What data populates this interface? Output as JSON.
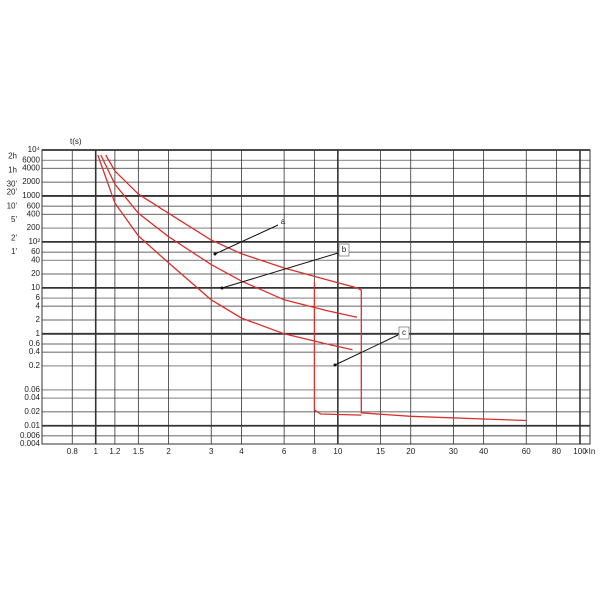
{
  "chart_data": {
    "type": "line",
    "x_label": "×In",
    "y_label": "t(s)",
    "log_x": true,
    "log_y": true,
    "grid": true,
    "xlim": [
      0.6,
      110
    ],
    "ylim": [
      0.004,
      10000
    ],
    "xticks": [
      0.8,
      1,
      1.2,
      1.5,
      2,
      3,
      4,
      6,
      8,
      10,
      15,
      20,
      30,
      40,
      60,
      80,
      100
    ],
    "yticks": [
      0.004,
      0.006,
      0.01,
      0.02,
      0.04,
      0.06,
      0.2,
      0.4,
      0.6,
      1,
      2,
      4,
      6,
      10,
      20,
      40,
      60,
      {
        "value": 100,
        "label": "10²"
      },
      200,
      400,
      600,
      1000,
      2000,
      4000,
      6000,
      {
        "value": 10000,
        "label": "10⁴"
      }
    ],
    "time_ticks": [
      {
        "value": 7200,
        "label": "2h"
      },
      {
        "value": 3600,
        "label": "1h"
      },
      {
        "value": 1800,
        "label": "30'"
      },
      {
        "value": 1200,
        "label": "20'"
      },
      {
        "value": 600,
        "label": "10'"
      },
      {
        "value": 300,
        "label": "5'"
      },
      {
        "value": 120,
        "label": "2'"
      },
      {
        "value": 60,
        "label": "1'"
      }
    ],
    "series": [
      {
        "color": "#d9302c",
        "x": [
          1.1,
          1.2,
          1.5,
          2,
          3,
          4,
          6,
          9,
          12,
          12.5,
          12.5,
          20,
          40,
          60
        ],
        "values": [
          7800,
          3500,
          1100,
          420,
          110,
          55,
          27,
          15,
          10,
          9,
          0.019,
          0.016,
          0.014,
          0.013
        ]
      },
      {
        "color": "#d9302c",
        "x": [
          1.05,
          1.2,
          1.5,
          2,
          3,
          4,
          6,
          9,
          12
        ],
        "values": [
          7800,
          1800,
          420,
          130,
          32,
          14,
          5.5,
          3.2,
          2.3
        ]
      },
      {
        "color": "#d9302c",
        "x": [
          1.02,
          1.2,
          1.5,
          2,
          3,
          4,
          6,
          9,
          11.5
        ],
        "values": [
          7800,
          700,
          135,
          35,
          5.5,
          2.2,
          1,
          0.6,
          0.45
        ]
      },
      {
        "color": "#d9302c",
        "x": [
          8,
          8,
          8.5,
          12.5
        ],
        "values": [
          13.5,
          0.022,
          0.018,
          0.017
        ]
      }
    ],
    "annotations": [
      "a",
      "b",
      "c"
    ]
  }
}
